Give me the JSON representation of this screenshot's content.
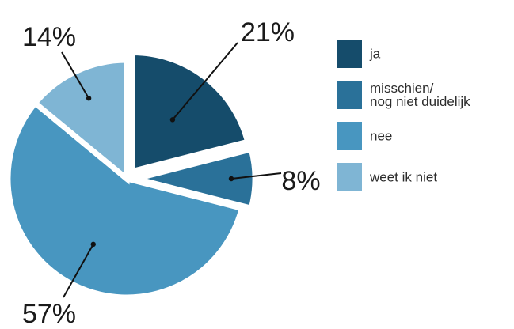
{
  "chart_data": {
    "type": "pie",
    "categories": [
      "ja",
      "misschien/\nnog niet duidelijk",
      "nee",
      "weet ik niet"
    ],
    "values": [
      21,
      8,
      57,
      14
    ],
    "value_labels": [
      "21%",
      "8%",
      "57%",
      "14%"
    ],
    "colors": [
      "#154c6b",
      "#2a7199",
      "#4896c0",
      "#7fb5d4"
    ],
    "exploded": [
      true,
      true,
      false,
      false
    ],
    "title": "",
    "legend_position": "right"
  }
}
